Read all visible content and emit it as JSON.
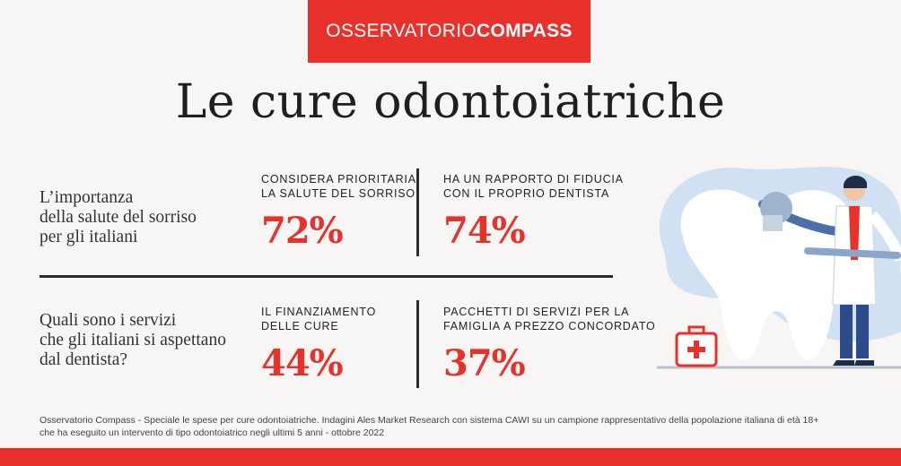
{
  "brand": {
    "part1": "OSSERVATORIO",
    "part2": "COMPASS"
  },
  "title": "Le cure odontoiatriche",
  "sections": [
    {
      "question": [
        "L’importanza",
        "della salute del sorriso",
        "per gli italiani"
      ],
      "stats": [
        {
          "label": [
            "CONSIDERA PRIORITARIA",
            "LA SALUTE DEL SORRISO"
          ],
          "value": "72%"
        },
        {
          "label": [
            "HA UN RAPPORTO DI FIDUCIA",
            "CON IL PROPRIO DENTISTA"
          ],
          "value": "74%"
        }
      ]
    },
    {
      "question": [
        "Quali sono i servizi",
        "che gli italiani si aspettano",
        "dal dentista?"
      ],
      "stats": [
        {
          "label": [
            "IL FINANZIAMENTO",
            "DELLE CURE"
          ],
          "value": "44%"
        },
        {
          "label": [
            "PACCHETTI DI SERVIZI PER LA",
            "FAMIGLIA A PREZZO CONCORDATO"
          ],
          "value": "37%"
        }
      ]
    }
  ],
  "footnote": [
    "Osservatorio Compass - Speciale le spese per cure odontoiatriche. Indagini Ales Market Research con sistema CAWI su un campione rappresentativo della popolazione italiana di età 18+",
    "che ha eseguito un intervento di tipo odontoiatrico negli ultimi 5 anni - ottobre 2022"
  ],
  "colors": {
    "accent": "#e8312a",
    "blob": "#cfe1f2",
    "tooth": "#ffffff",
    "coat": "#ffffff",
    "pants": "#2d4a8a"
  },
  "icons": [
    "first-aid-kit-icon",
    "tooth-illustration",
    "dentist-illustration"
  ]
}
